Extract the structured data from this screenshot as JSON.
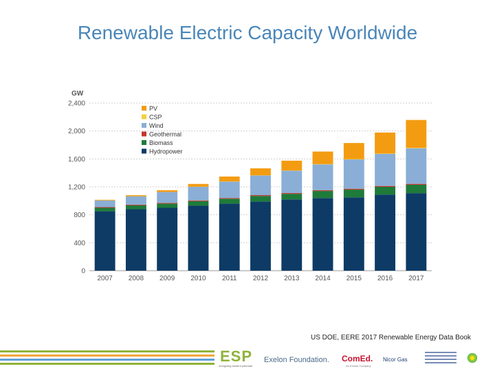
{
  "title": "Renewable Electric Capacity Worldwide",
  "credit": "US DOE, EERE 2017 Renewable Energy Data Book",
  "footer": {
    "esp": "ESP",
    "esp_sub": "energizing student potential",
    "exelon": "Exelon Foundation.",
    "comed": "ComEd.",
    "comed_sub": "An Exelon Company",
    "nicor": "Nicor Gas"
  },
  "colors": {
    "title": "#4a86b8",
    "PV": "#f39c12",
    "CSP": "#f4d03f",
    "Wind": "#8aaed6",
    "Geothermal": "#c0392b",
    "Biomass": "#1e7b3a",
    "Hydropower": "#0d3b66"
  },
  "chart_data": {
    "type": "bar",
    "stacked": true,
    "ylabel": "GW",
    "ylim": [
      0,
      2400
    ],
    "yticks": [
      "0",
      "400",
      "800",
      "1,200",
      "1,600",
      "2,000",
      "2,400"
    ],
    "ytick_values": [
      0,
      400,
      800,
      1200,
      1600,
      2000,
      2400
    ],
    "grid": true,
    "legend_position": "top-left",
    "categories": [
      "2007",
      "2008",
      "2009",
      "2010",
      "2011",
      "2012",
      "2013",
      "2014",
      "2015",
      "2016",
      "2017"
    ],
    "series": [
      {
        "name": "Hydropower",
        "values": [
          850,
          880,
          900,
          930,
          960,
          990,
          1020,
          1040,
          1050,
          1090,
          1110
        ]
      },
      {
        "name": "Biomass",
        "values": [
          50,
          55,
          60,
          65,
          70,
          80,
          80,
          100,
          110,
          110,
          120
        ]
      },
      {
        "name": "Geothermal",
        "values": [
          10,
          10,
          11,
          11,
          11,
          12,
          12,
          12,
          13,
          13,
          13
        ]
      },
      {
        "name": "Wind",
        "values": [
          95,
          120,
          155,
          195,
          235,
          280,
          320,
          370,
          420,
          460,
          510
        ]
      },
      {
        "name": "CSP",
        "values": [
          1,
          1,
          1,
          1,
          2,
          3,
          3,
          4,
          5,
          5,
          5
        ]
      },
      {
        "name": "PV",
        "values": [
          9,
          15,
          25,
          40,
          70,
          100,
          140,
          180,
          230,
          300,
          400
        ]
      }
    ],
    "legend_order": [
      "PV",
      "CSP",
      "Wind",
      "Geothermal",
      "Biomass",
      "Hydropower"
    ]
  }
}
